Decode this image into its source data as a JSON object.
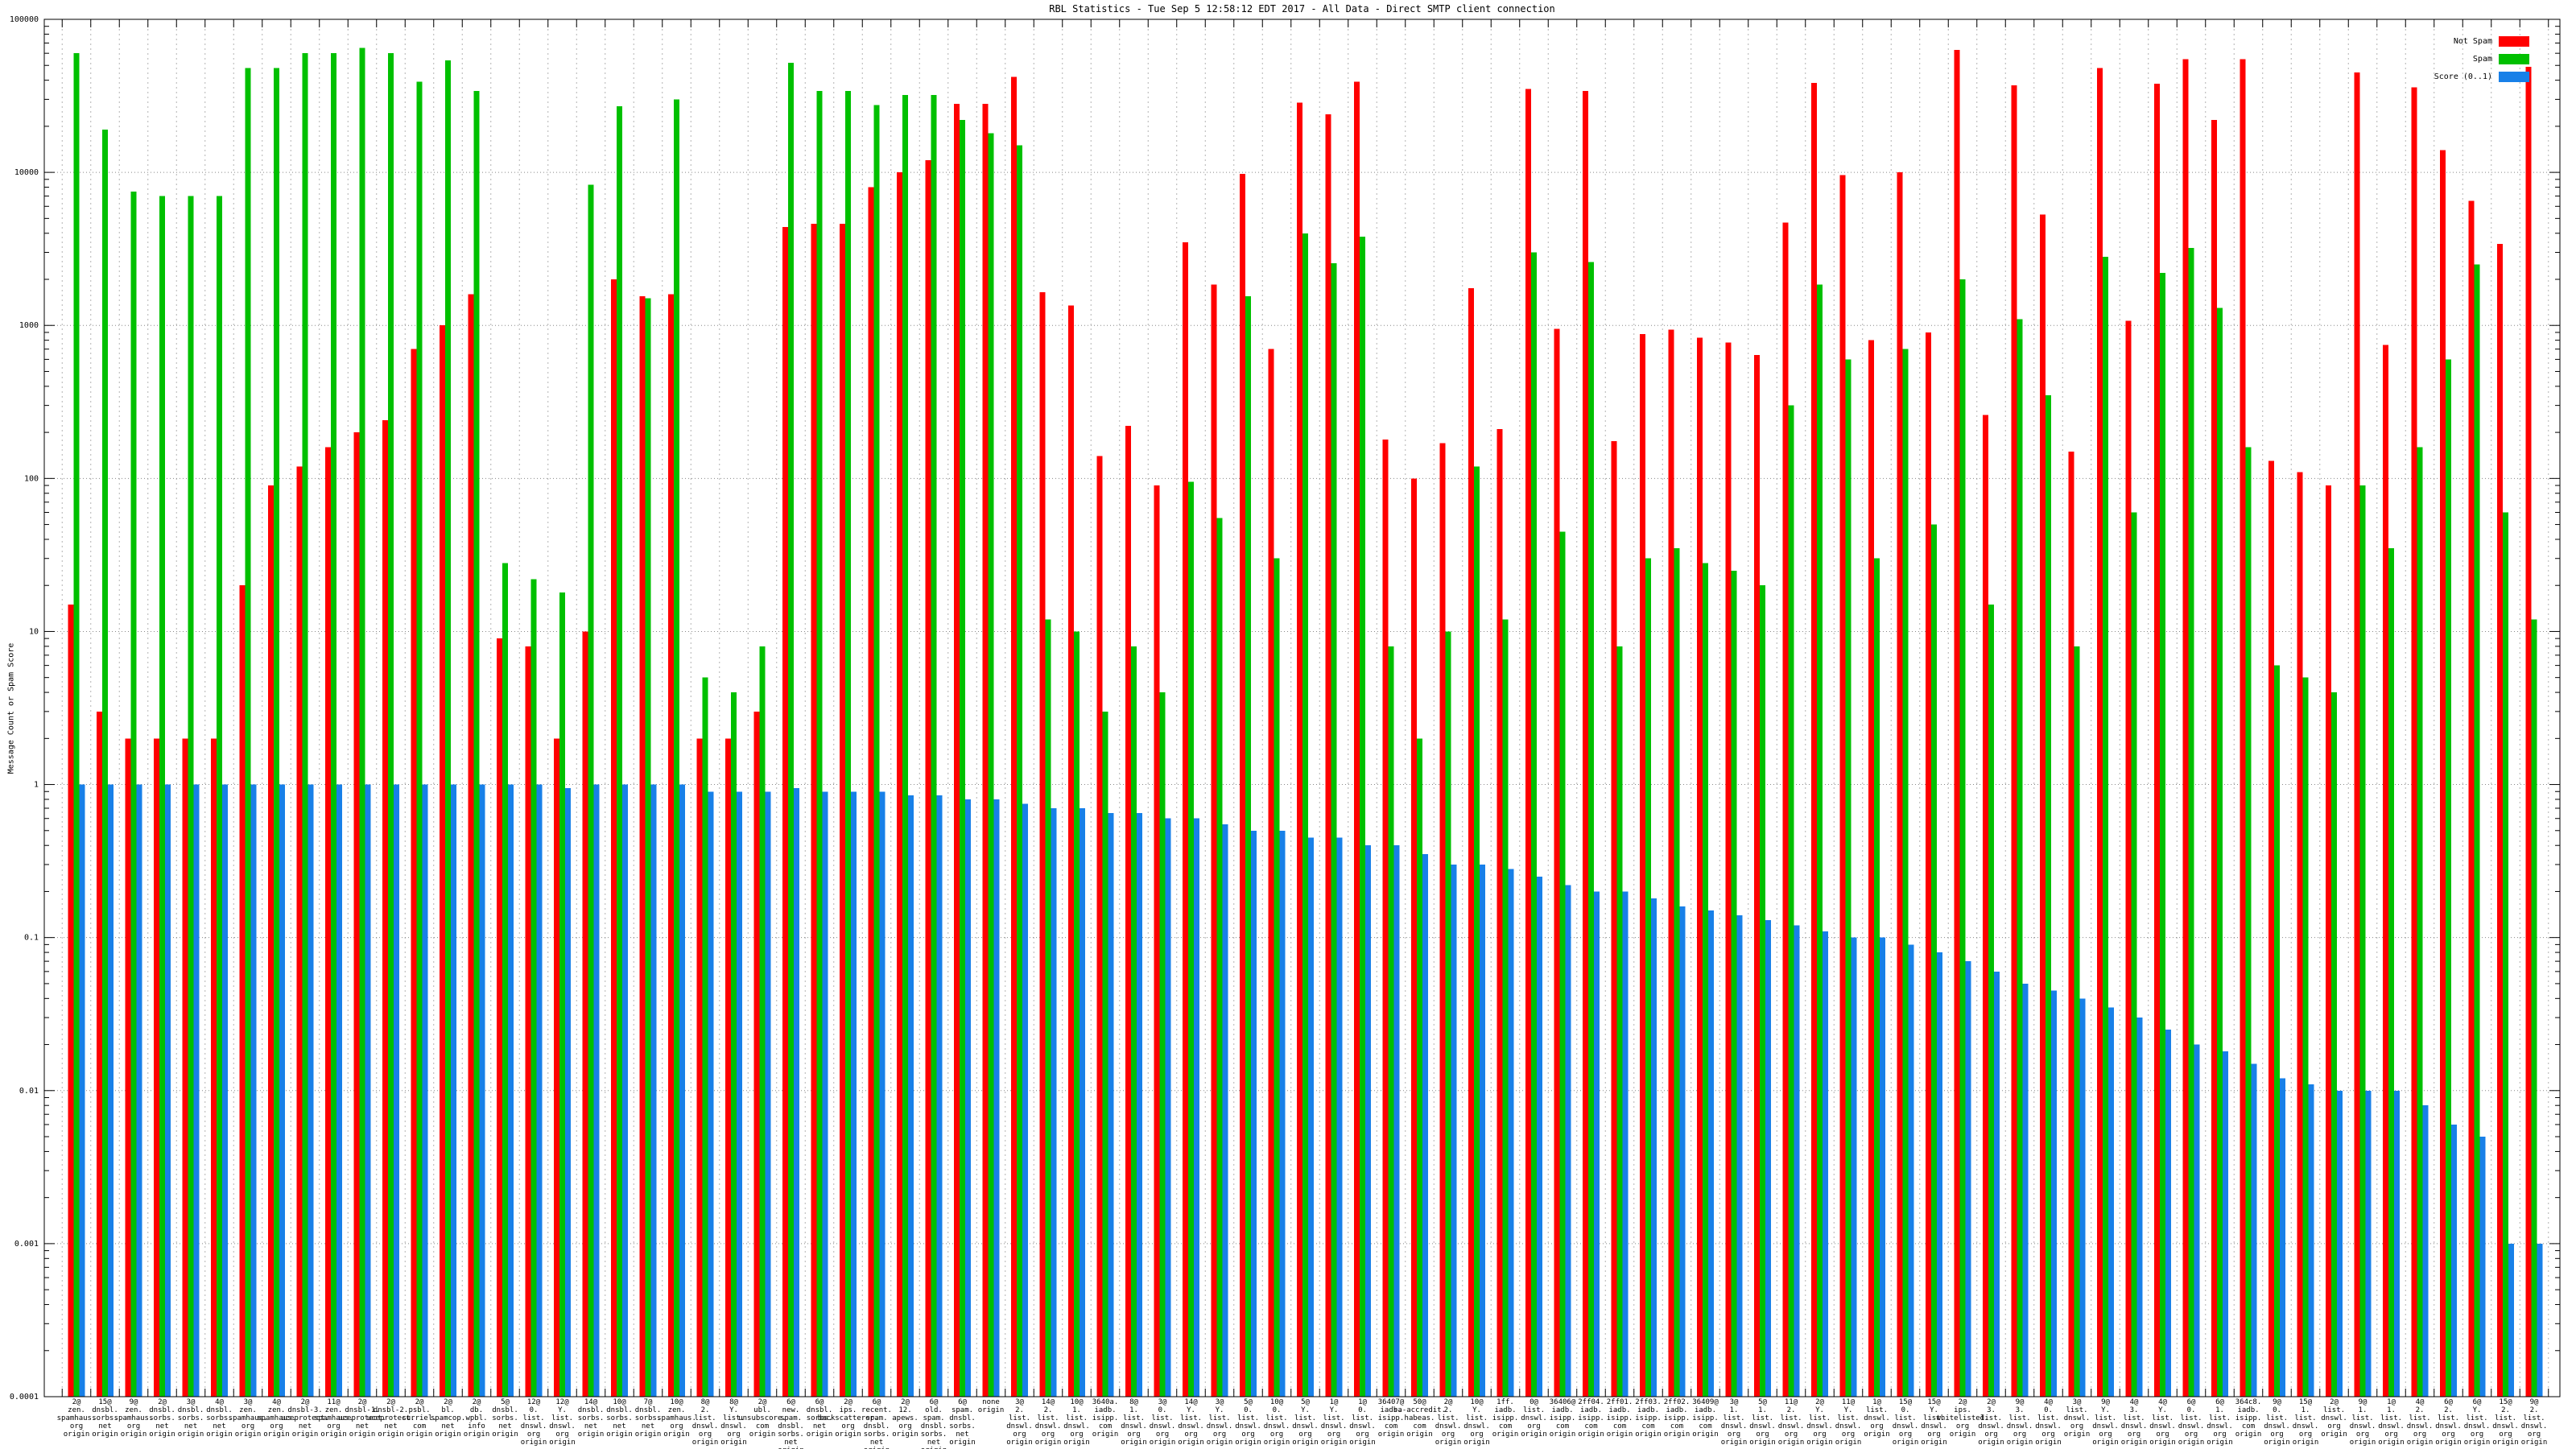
{
  "title": "RBL Statistics - Tue Sep  5 12:58:12 EDT 2017 - All Data - Direct SMTP client connection",
  "y_axis_label": "Message Count or Spam Score",
  "legend": {
    "position": "top-right",
    "items": [
      {
        "label": "Not Spam",
        "color": "#ff0000"
      },
      {
        "label": "Spam",
        "color": "#00c000"
      },
      {
        "label": "Score (0..1)",
        "color": "#1880e8"
      }
    ]
  },
  "chart_data": {
    "type": "bar",
    "title": "RBL Statistics - Tue Sep  5 12:58:12 EDT 2017 - All Data - Direct SMTP client connection",
    "xlabel": "",
    "ylabel": "Message Count or Spam Score",
    "y_scale": "log",
    "ylim": [
      0.0001,
      100000
    ],
    "ytick_labels": [
      "100000",
      "10000",
      "1000",
      "100",
      "10",
      "1",
      "0.1",
      "0.01",
      "0.001",
      "0.0001"
    ],
    "grid": true,
    "legend_position": "top-right",
    "categories": [
      "2@zen.spamhaus.org origin",
      "15@dnsbl.sorbs.net origin",
      "9@zen.spamhaus.org origin",
      "2@dnsbl.sorbs.net origin",
      "3@dnsbl.sorbs.net origin",
      "4@dnsbl.sorbs.net origin",
      "3@zen.spamhaus.org origin",
      "4@zen.spamhaus.org origin",
      "2@dnsbl-3.uceprotect.net origin",
      "11@zen.spamhaus.org origin",
      "2@dnsbl-1.uceprotect.net origin",
      "2@dnsbl-2.uceprotect.net origin",
      "2@psbl.surriel.com origin",
      "2@bl.spamcop.net origin",
      "2@db.wpbl.info origin",
      "5@dnsbl.sorbs.net origin",
      "12@0.list.dnswl.org origin",
      "12@Y.list.dnswl.org origin",
      "14@dnsbl.sorbs.net origin",
      "10@dnsbl.sorbs.net origin",
      "7@dnsbl.sorbs.net origin",
      "10@zen.spamhaus.org origin",
      "8@2.list.dnswl.org origin",
      "8@Y.list.dnswl.org origin",
      "2@ubl.unsubscore.com origin",
      "6@new.spam.dnsbl.sorbs.net origin",
      "6@dnsbl.sorbs.net origin",
      "2@ips.backscatterer.org origin",
      "6@recent.spam.dnsbl.sorbs.net origin",
      "2@12.apews.org origin",
      "6@old.spam.dnsbl.sorbs.net origin",
      "6@spam.dnsbl.sorbs.net origin",
      "none origin",
      "3@2.list.dnswl.org origin",
      "14@2.list.dnswl.org origin",
      "10@1.list.dnswl.org origin",
      "3640a.iadb.isipp.com origin",
      "8@1.list.dnswl.org origin",
      "3@0.list.dnswl.org origin",
      "14@Y.list.dnswl.org origin",
      "3@Y.list.dnswl.org origin",
      "5@0.list.dnswl.org origin",
      "10@0.list.dnswl.org origin",
      "5@Y.list.dnswl.org origin",
      "1@Y.list.dnswl.org origin",
      "1@0.list.dnswl.org origin",
      "36407@iadb.isipp.com origin",
      "50@sa-accredit.habeas.com origin",
      "2@2.list.dnswl.org origin",
      "10@Y.list.dnswl.org origin",
      "1ff.iadb.isipp.com origin",
      "0@list.dnswl.org origin",
      "36406@iadb.isipp.com origin",
      "2ff04.iadb.isipp.com origin",
      "2ff01.iadb.isipp.com origin",
      "2ff03.iadb.isipp.com origin",
      "2ff02.iadb.isipp.com origin",
      "36409@iadb.isipp.com origin",
      "3@1.list.dnswl.org origin",
      "5@1.list.dnswl.org origin",
      "11@2.list.dnswl.org origin",
      "2@Y.list.dnswl.org origin",
      "11@Y.list.dnswl.org origin",
      "1@list.dnswl.org origin",
      "15@0.list.dnswl.org origin",
      "15@Y.list.dnswl.org origin",
      "2@ips.whitelisted.org origin",
      "2@3.list.dnswl.org origin",
      "9@3.list.dnswl.org origin",
      "4@0.list.dnswl.org origin",
      "3@list.dnswl.org origin",
      "9@Y.list.dnswl.org origin",
      "4@3.list.dnswl.org origin",
      "4@Y.list.dnswl.org origin",
      "6@0.list.dnswl.org origin",
      "6@1.list.dnswl.org origin",
      "364c8.iadb.isipp.com origin",
      "9@0.list.dnswl.org origin",
      "15@1.list.dnswl.org origin",
      "2@list.dnswl.org origin",
      "9@1.list.dnswl.org origin",
      "1@1.list.dnswl.org origin",
      "4@2.list.dnswl.org origin",
      "6@2.list.dnswl.org origin",
      "6@Y.list.dnswl.org origin",
      "15@2.list.dnswl.org origin",
      "9@2.list.dnswl.org origin"
    ],
    "series": [
      {
        "name": "Not Spam",
        "color": "#ff0000",
        "values": [
          15,
          3,
          2,
          2,
          2,
          2,
          20,
          90,
          120,
          160,
          200,
          240,
          700,
          1000,
          1600,
          9,
          8,
          2,
          10,
          2000,
          1550,
          1600,
          2,
          2,
          3,
          4400,
          4600,
          4600,
          8000,
          10000,
          12000,
          28000,
          28000,
          42000,
          1650,
          1350,
          140,
          220,
          90,
          3500,
          1850,
          9800,
          700,
          28500,
          24000,
          39000,
          180,
          100,
          170,
          1750,
          210,
          35000,
          950,
          34000,
          175,
          875,
          940,
          830,
          775,
          640,
          4700,
          38500,
          9600,
          800,
          10000,
          900,
          63000,
          260,
          37000,
          5300,
          150,
          48000,
          1070,
          38000,
          55000,
          22000,
          55000,
          130,
          110,
          90,
          45000,
          745,
          36000,
          14000,
          6500,
          3400,
          49000
        ]
      },
      {
        "name": "Spam",
        "color": "#00c000",
        "values": [
          60000,
          19000,
          7500,
          7000,
          7000,
          7000,
          48000,
          48000,
          60000,
          60000,
          65000,
          60000,
          39000,
          54000,
          34000,
          28,
          22,
          18,
          8300,
          27000,
          1500,
          30000,
          5,
          4,
          8,
          52000,
          34000,
          34000,
          27500,
          32000,
          32000,
          22000,
          18000,
          15000,
          12,
          10,
          3,
          8,
          4,
          95,
          55,
          1550,
          30,
          4000,
          2550,
          3800,
          8,
          2,
          10,
          120,
          12,
          3000,
          45,
          2600,
          8,
          30,
          35,
          28,
          25,
          20,
          300,
          1850,
          600,
          30,
          700,
          50,
          2000,
          15,
          1100,
          350,
          8,
          2800,
          60,
          2200,
          3200,
          1300,
          160,
          6,
          5,
          4,
          90,
          35,
          160,
          600,
          2500,
          60,
          12
        ]
      },
      {
        "name": "Score (0..1)",
        "color": "#1880e8",
        "values": [
          1,
          1,
          1,
          1,
          1,
          1,
          1,
          1,
          1,
          1,
          1,
          1,
          1,
          1,
          1,
          1,
          1,
          0.95,
          1,
          1,
          1,
          1,
          0.9,
          0.9,
          0.9,
          0.95,
          0.9,
          0.9,
          0.9,
          0.85,
          0.85,
          0.8,
          0.8,
          0.75,
          0.7,
          0.7,
          0.65,
          0.65,
          0.6,
          0.6,
          0.55,
          0.5,
          0.5,
          0.45,
          0.45,
          0.4,
          0.4,
          0.35,
          0.3,
          0.3,
          0.28,
          0.25,
          0.22,
          0.2,
          0.2,
          0.18,
          0.16,
          0.15,
          0.14,
          0.13,
          0.12,
          0.11,
          0.1,
          0.1,
          0.09,
          0.08,
          0.07,
          0.06,
          0.05,
          0.045,
          0.04,
          0.035,
          0.03,
          0.025,
          0.02,
          0.018,
          0.015,
          0.012,
          0.011,
          0.01,
          0.01,
          0.01,
          0.008,
          0.006,
          0.005,
          0.001,
          0.001
        ]
      }
    ]
  }
}
